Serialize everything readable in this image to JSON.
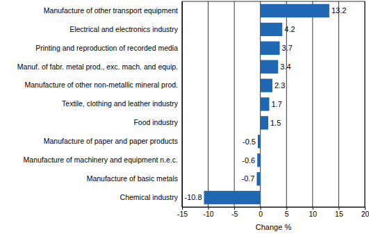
{
  "chart_data": {
    "type": "bar",
    "orientation": "horizontal",
    "x_label": "Change %",
    "categories": [
      "Manufacture of other transport equipment",
      "Electrical and electronics industry",
      "Printing and reproduction of recorded media",
      "Manuf. of fabr. metal prod., exc. mach. and equip.",
      "Manufacture of other non-metallic mineral prod.",
      "Textile, clothing and leather industry",
      "Food industry",
      "Manufacture of paper and paper products",
      "Manufacture of machinery and equipment n.e.c.",
      "Manufacture of basic metals",
      "Chemical industry"
    ],
    "values": [
      13.2,
      4.2,
      3.7,
      3.4,
      2.3,
      1.7,
      1.5,
      -0.5,
      -0.6,
      -0.7,
      -10.8
    ],
    "color": "#1f66b3",
    "xlim": [
      -15,
      20
    ],
    "xticks": [
      -15,
      -10,
      -5,
      0,
      5,
      10,
      15,
      20
    ],
    "grid": true,
    "data_labels": true
  }
}
